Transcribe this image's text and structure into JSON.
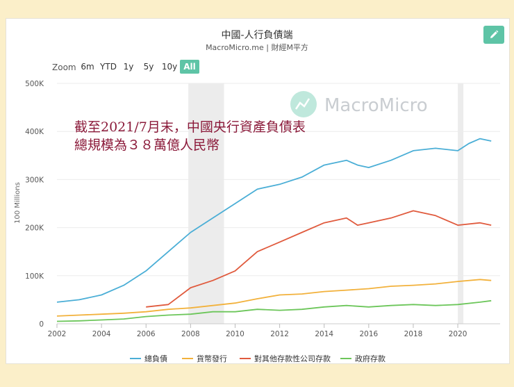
{
  "header": {
    "title": "中國-人行負債端",
    "subtitle": "MacroMicro.me | 財經M平方"
  },
  "toolbar": {
    "zoom_label": "Zoom",
    "ranges": [
      "6m",
      "YTD",
      "1y",
      "5y",
      "10y",
      "All"
    ],
    "active_range": "All",
    "edit_icon": "pencil-icon"
  },
  "watermark": {
    "text": "MacroMicro",
    "icon": "chart-logo-icon"
  },
  "annotation": {
    "line1": "截至2021/7月末，中國央行資產負債表",
    "line2": "總規模為３８萬億人民幣"
  },
  "colors": {
    "total": "#4aaed6",
    "currency": "#f2b13b",
    "other_deposits": "#e05a3d",
    "gov_deposits": "#6cc65a",
    "accent": "#5ec4a6",
    "annotation": "#8b1a3a"
  },
  "chart_data": {
    "type": "line",
    "title": "中國-人行負債端",
    "ylabel": "100 Millions",
    "xlabel": "",
    "xlim": [
      2002.0,
      2021.9
    ],
    "ylim": [
      0,
      500000
    ],
    "x_ticks": [
      "2002",
      "2004",
      "2006",
      "2008",
      "2010",
      "2012",
      "2014",
      "2016",
      "2018",
      "2020"
    ],
    "y_ticks": [
      "0",
      "100K",
      "200K",
      "300K",
      "400K",
      "500K"
    ],
    "y_tick_values": [
      0,
      100000,
      200000,
      300000,
      400000,
      500000
    ],
    "shaded_periods": [
      [
        2007.9,
        2009.5
      ],
      [
        2020.0,
        2020.25
      ]
    ],
    "grid": "horizontal",
    "legend_position": "bottom",
    "series": [
      {
        "name": "總負債",
        "color_key": "total",
        "points": [
          [
            2002,
            45000
          ],
          [
            2003,
            50000
          ],
          [
            2004,
            60000
          ],
          [
            2005,
            80000
          ],
          [
            2006,
            110000
          ],
          [
            2007,
            150000
          ],
          [
            2008,
            190000
          ],
          [
            2009,
            220000
          ],
          [
            2010,
            250000
          ],
          [
            2011,
            280000
          ],
          [
            2012,
            290000
          ],
          [
            2013,
            305000
          ],
          [
            2014,
            330000
          ],
          [
            2015,
            340000
          ],
          [
            2015.5,
            330000
          ],
          [
            2016,
            325000
          ],
          [
            2017,
            340000
          ],
          [
            2018,
            360000
          ],
          [
            2019,
            365000
          ],
          [
            2020,
            360000
          ],
          [
            2020.5,
            375000
          ],
          [
            2021,
            385000
          ],
          [
            2021.5,
            380000
          ]
        ]
      },
      {
        "name": "貨幣發行",
        "color_key": "currency",
        "points": [
          [
            2002,
            16000
          ],
          [
            2003,
            18000
          ],
          [
            2004,
            20000
          ],
          [
            2005,
            22000
          ],
          [
            2006,
            25000
          ],
          [
            2007,
            30000
          ],
          [
            2008,
            33000
          ],
          [
            2009,
            38000
          ],
          [
            2010,
            43000
          ],
          [
            2011,
            52000
          ],
          [
            2012,
            60000
          ],
          [
            2013,
            62000
          ],
          [
            2014,
            67000
          ],
          [
            2015,
            70000
          ],
          [
            2016,
            73000
          ],
          [
            2017,
            78000
          ],
          [
            2018,
            80000
          ],
          [
            2019,
            83000
          ],
          [
            2020,
            88000
          ],
          [
            2021,
            92000
          ],
          [
            2021.5,
            90000
          ]
        ]
      },
      {
        "name": "對其他存款性公司存款",
        "color_key": "other_deposits",
        "points": [
          [
            2006,
            35000
          ],
          [
            2007,
            40000
          ],
          [
            2008,
            75000
          ],
          [
            2009,
            90000
          ],
          [
            2010,
            110000
          ],
          [
            2011,
            150000
          ],
          [
            2012,
            170000
          ],
          [
            2013,
            190000
          ],
          [
            2014,
            210000
          ],
          [
            2015,
            220000
          ],
          [
            2015.5,
            205000
          ],
          [
            2016,
            210000
          ],
          [
            2017,
            220000
          ],
          [
            2018,
            235000
          ],
          [
            2019,
            225000
          ],
          [
            2020,
            205000
          ],
          [
            2021,
            210000
          ],
          [
            2021.5,
            205000
          ]
        ]
      },
      {
        "name": "政府存款",
        "color_key": "gov_deposits",
        "points": [
          [
            2002,
            5000
          ],
          [
            2003,
            6000
          ],
          [
            2004,
            8000
          ],
          [
            2005,
            10000
          ],
          [
            2006,
            15000
          ],
          [
            2007,
            18000
          ],
          [
            2008,
            20000
          ],
          [
            2009,
            25000
          ],
          [
            2010,
            25000
          ],
          [
            2011,
            30000
          ],
          [
            2012,
            28000
          ],
          [
            2013,
            30000
          ],
          [
            2014,
            35000
          ],
          [
            2015,
            38000
          ],
          [
            2016,
            35000
          ],
          [
            2017,
            38000
          ],
          [
            2018,
            40000
          ],
          [
            2019,
            38000
          ],
          [
            2020,
            40000
          ],
          [
            2021,
            45000
          ],
          [
            2021.5,
            48000
          ]
        ]
      }
    ]
  }
}
